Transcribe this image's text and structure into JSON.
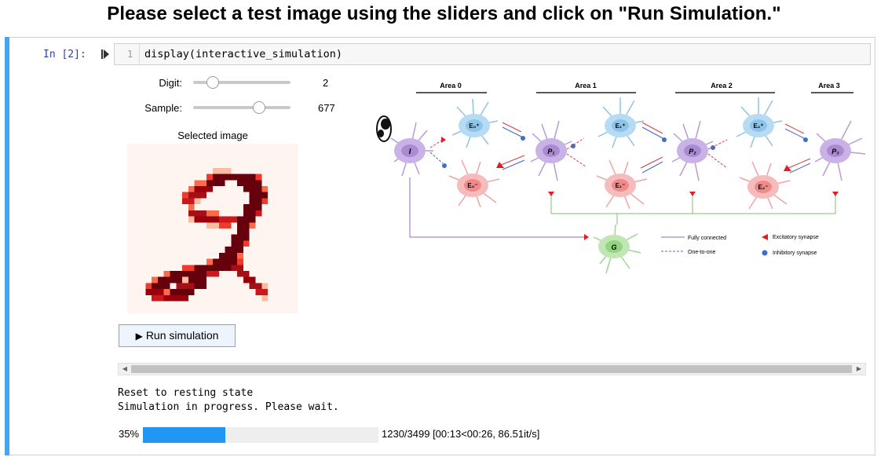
{
  "headline": "Please select a test image using the sliders and click on \"Run Simulation.\"",
  "cell": {
    "prompt": "In [2]:",
    "line_number": "1",
    "code": "display(interactive_simulation)"
  },
  "sliders": {
    "digit": {
      "label": "Digit:",
      "value": "2",
      "position": 0.2
    },
    "sample": {
      "label": "Sample:",
      "value": "677",
      "position": 0.68
    }
  },
  "selected_image": {
    "title": "Selected image"
  },
  "run_button": {
    "label": "Run simulation"
  },
  "output": {
    "line1": "Reset to resting state",
    "line2": "Simulation in progress. Please wait."
  },
  "progress": {
    "percent_label": "35%",
    "fraction": 0.35,
    "stats": "1230/3499 [00:13<00:26, 86.51it/s]"
  },
  "diagram": {
    "areas": [
      "Area 0",
      "Area 1",
      "Area 2",
      "Area 3"
    ],
    "legend": {
      "fully_connected": "Fully connected",
      "one_to_one": "One-to-one",
      "excitatory": "Excitatory synapse",
      "inhibitory": "Inhibitory synapse"
    },
    "neurons": {
      "input": "I",
      "p1": "P₁",
      "p2": "P₂",
      "p3": "P₃",
      "e0p": "E₀⁺",
      "e0m": "E₀⁻",
      "e1p": "E₁⁺",
      "e1m": "E₁⁻",
      "e2p": "E₂⁺",
      "e2m": "E₂⁻",
      "g": "G"
    }
  },
  "colors": {
    "cell_bar": "#42a5f5",
    "progress_fill": "#2196f3",
    "prompt": "#303f9f",
    "digit_dark": "#67000d"
  }
}
